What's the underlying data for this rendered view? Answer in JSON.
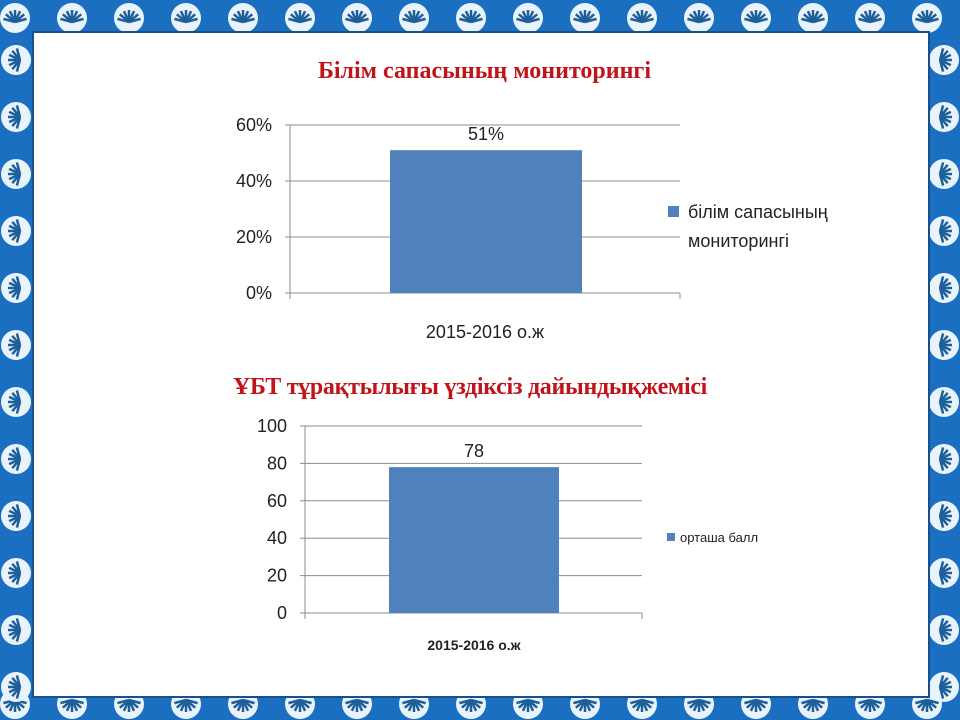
{
  "slide": {
    "border_color": "#1a6fc0",
    "bar_color": "#4f81bd",
    "title_color": "#c0141b"
  },
  "chart_data": [
    {
      "type": "bar",
      "title": "Білім сапасының мониторингі",
      "categories": [
        "2015-2016 о.ж"
      ],
      "series": [
        {
          "name": "білім сапасының мониторингі",
          "values": [
            51
          ]
        }
      ],
      "data_labels": [
        "51%"
      ],
      "y_ticks": [
        "0%",
        "20%",
        "40%",
        "60%"
      ],
      "ylim": [
        0,
        60
      ],
      "y_unit": "%",
      "grid": true,
      "legend": "right"
    },
    {
      "type": "bar",
      "title": "ҰБТ тұрақтылығы үздіксіз дайындықжемісі",
      "categories": [
        "2015-2016 о.ж"
      ],
      "series": [
        {
          "name": "орташа балл",
          "values": [
            78
          ]
        }
      ],
      "data_labels": [
        "78"
      ],
      "y_ticks": [
        "0",
        "20",
        "40",
        "60",
        "80",
        "100"
      ],
      "ylim": [
        0,
        100
      ],
      "grid": true,
      "legend": "right"
    }
  ]
}
